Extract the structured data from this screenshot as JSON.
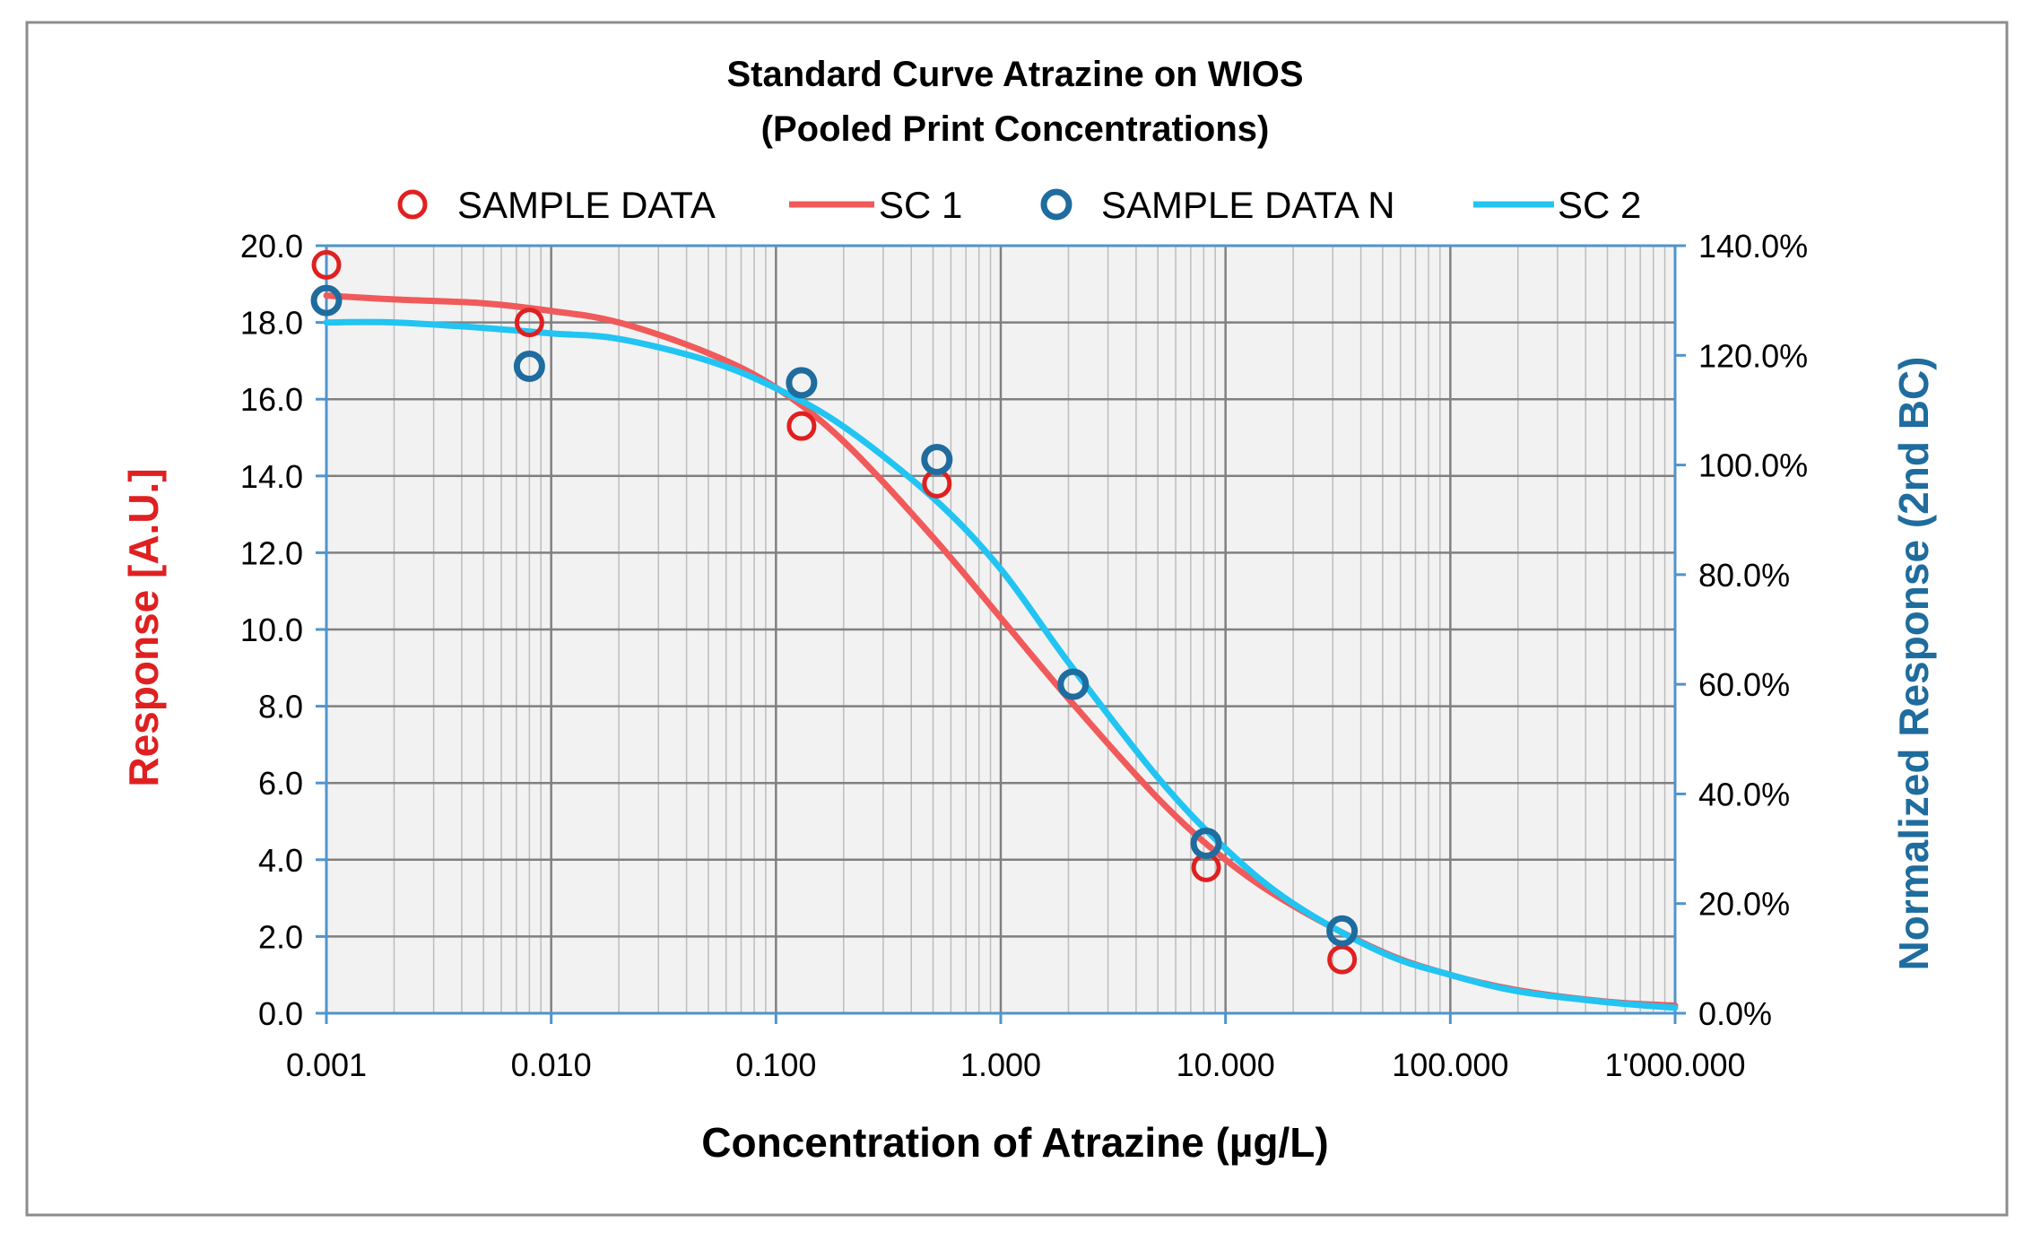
{
  "chart_data": {
    "type": "scatter",
    "title": "Standard Curve Atrazine on WIOS",
    "subtitle": "(Pooled Print Concentrations)",
    "xlabel": "Concentration of Atrazine (µg/L)",
    "ylabel": "Response [A.U.]",
    "y2label": "Normalized Response (2nd BC)",
    "x_scale": "log",
    "xlim": [
      0.001,
      1000
    ],
    "ylim": [
      0,
      20
    ],
    "y2lim": [
      0,
      1.4
    ],
    "x_ticks": [
      0.001,
      0.01,
      0.1,
      1,
      10,
      100,
      1000
    ],
    "x_tick_labels": [
      "0.001",
      "0.010",
      "0.100",
      "1.000",
      "10.000",
      "100.000",
      "1'000.000"
    ],
    "y_ticks": [
      0,
      2,
      4,
      6,
      8,
      10,
      12,
      14,
      16,
      18,
      20
    ],
    "y_tick_labels": [
      "0.0",
      "2.0",
      "4.0",
      "6.0",
      "8.0",
      "10.0",
      "12.0",
      "14.0",
      "16.0",
      "18.0",
      "20.0"
    ],
    "y2_ticks": [
      0,
      0.2,
      0.4,
      0.6,
      0.8,
      1.0,
      1.2,
      1.4
    ],
    "y2_tick_labels": [
      "0.0%",
      "20.0%",
      "40.0%",
      "60.0%",
      "80.0%",
      "100.0%",
      "120.0%",
      "140.0%"
    ],
    "grid": true,
    "legend_position": "top",
    "colors": {
      "sample_data": "#e02020",
      "sc1": "#f05a5a",
      "sample_data_n": "#1f6c9e",
      "sc2": "#22c4f2",
      "ylabel": "#e02020",
      "y2label": "#1f6c9e",
      "plot_bg": "#f2f2f2",
      "major_grid": "#808080",
      "minor_grid": "#bdbdbd",
      "axis": "#4f94cd",
      "border": "#8c8c8c"
    },
    "series": [
      {
        "name": "SAMPLE DATA",
        "kind": "scatter",
        "axis": "left",
        "x": [
          0.001,
          0.008,
          0.13,
          0.52,
          8.2,
          33
        ],
        "y": [
          19.5,
          18.0,
          15.3,
          13.8,
          3.8,
          1.4
        ]
      },
      {
        "name": "SC 1",
        "kind": "line",
        "axis": "left",
        "x": [
          0.001,
          0.002,
          0.005,
          0.01,
          0.02,
          0.05,
          0.1,
          0.2,
          0.5,
          1,
          2,
          5,
          10,
          20,
          50,
          100,
          200,
          500,
          1000
        ],
        "y": [
          18.7,
          18.6,
          18.5,
          18.3,
          18.0,
          17.2,
          16.3,
          14.9,
          12.4,
          10.3,
          8.2,
          5.6,
          4.0,
          2.8,
          1.6,
          1.0,
          0.6,
          0.3,
          0.2
        ]
      },
      {
        "name": "SAMPLE DATA N",
        "kind": "scatter",
        "axis": "right",
        "x": [
          0.001,
          0.008,
          0.13,
          0.52,
          2.1,
          8.2,
          33
        ],
        "y": [
          1.3,
          1.18,
          1.15,
          1.01,
          0.6,
          0.31,
          0.15
        ]
      },
      {
        "name": "SC 2",
        "kind": "line",
        "axis": "right",
        "x": [
          0.001,
          0.002,
          0.005,
          0.01,
          0.02,
          0.05,
          0.1,
          0.2,
          0.5,
          1,
          2,
          5,
          10,
          20,
          50,
          100,
          200,
          500,
          1000
        ],
        "y": [
          1.26,
          1.26,
          1.25,
          1.24,
          1.23,
          1.19,
          1.14,
          1.07,
          0.94,
          0.81,
          0.64,
          0.43,
          0.3,
          0.2,
          0.11,
          0.07,
          0.04,
          0.02,
          0.01
        ]
      }
    ]
  }
}
